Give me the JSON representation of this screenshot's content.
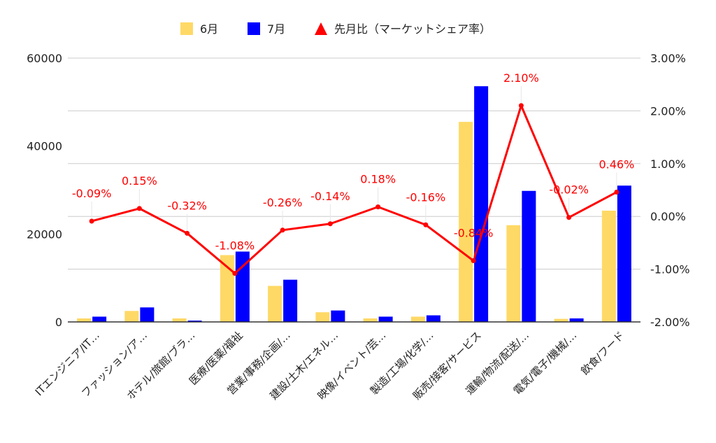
{
  "chart_data": {
    "type": "bar",
    "categories": [
      "ITエンジニア/IT…",
      "ファッション/ア…",
      "ホテル/旅館/ブラ…",
      "医療/医薬/福祉",
      "営業/事務/企画/…",
      "建設/土木/エネル…",
      "映像/イベント/芸…",
      "製造/工場/化学/…",
      "販売/接客/サービス",
      "運輸/物流/配送/…",
      "電気/電子/機械/…",
      "飲食/フード"
    ],
    "series": [
      {
        "name": "6月",
        "type": "bar",
        "axis": "left",
        "color": "#FFD966",
        "values": [
          800,
          2500,
          800,
          15200,
          8200,
          2200,
          800,
          1200,
          45500,
          22000,
          700,
          25300
        ]
      },
      {
        "name": "7月",
        "type": "bar",
        "axis": "left",
        "color": "#0000FF",
        "values": [
          1200,
          3300,
          300,
          16000,
          9600,
          2600,
          1200,
          1500,
          53600,
          29800,
          800,
          31000
        ]
      },
      {
        "name": "先月比（マーケットシェア率）",
        "type": "line",
        "axis": "right",
        "color": "#FF0000",
        "values": [
          -0.09,
          0.15,
          -0.32,
          -1.08,
          -0.26,
          -0.14,
          0.18,
          -0.16,
          -0.84,
          2.1,
          -0.02,
          0.46
        ],
        "labels": [
          "-0.09%",
          "0.15%",
          "-0.32%",
          "-1.08%",
          "-0.26%",
          "-0.14%",
          "0.18%",
          "-0.16%",
          "-0.84%",
          "2.10%",
          "-0.02%",
          "0.46%"
        ]
      }
    ],
    "left_axis": {
      "ylim": [
        0,
        60000
      ],
      "ticks": [
        0,
        20000,
        40000,
        60000
      ],
      "tick_labels": [
        "0",
        "20000",
        "40000",
        "60000"
      ]
    },
    "right_axis": {
      "ylim": [
        -2,
        3
      ],
      "ticks": [
        -2,
        -1,
        0,
        1,
        2,
        3
      ],
      "tick_labels": [
        "-2.00%",
        "-1.00%",
        "0.00%",
        "1.00%",
        "2.00%",
        "3.00%"
      ]
    },
    "grid": true,
    "legend": "top-center"
  }
}
